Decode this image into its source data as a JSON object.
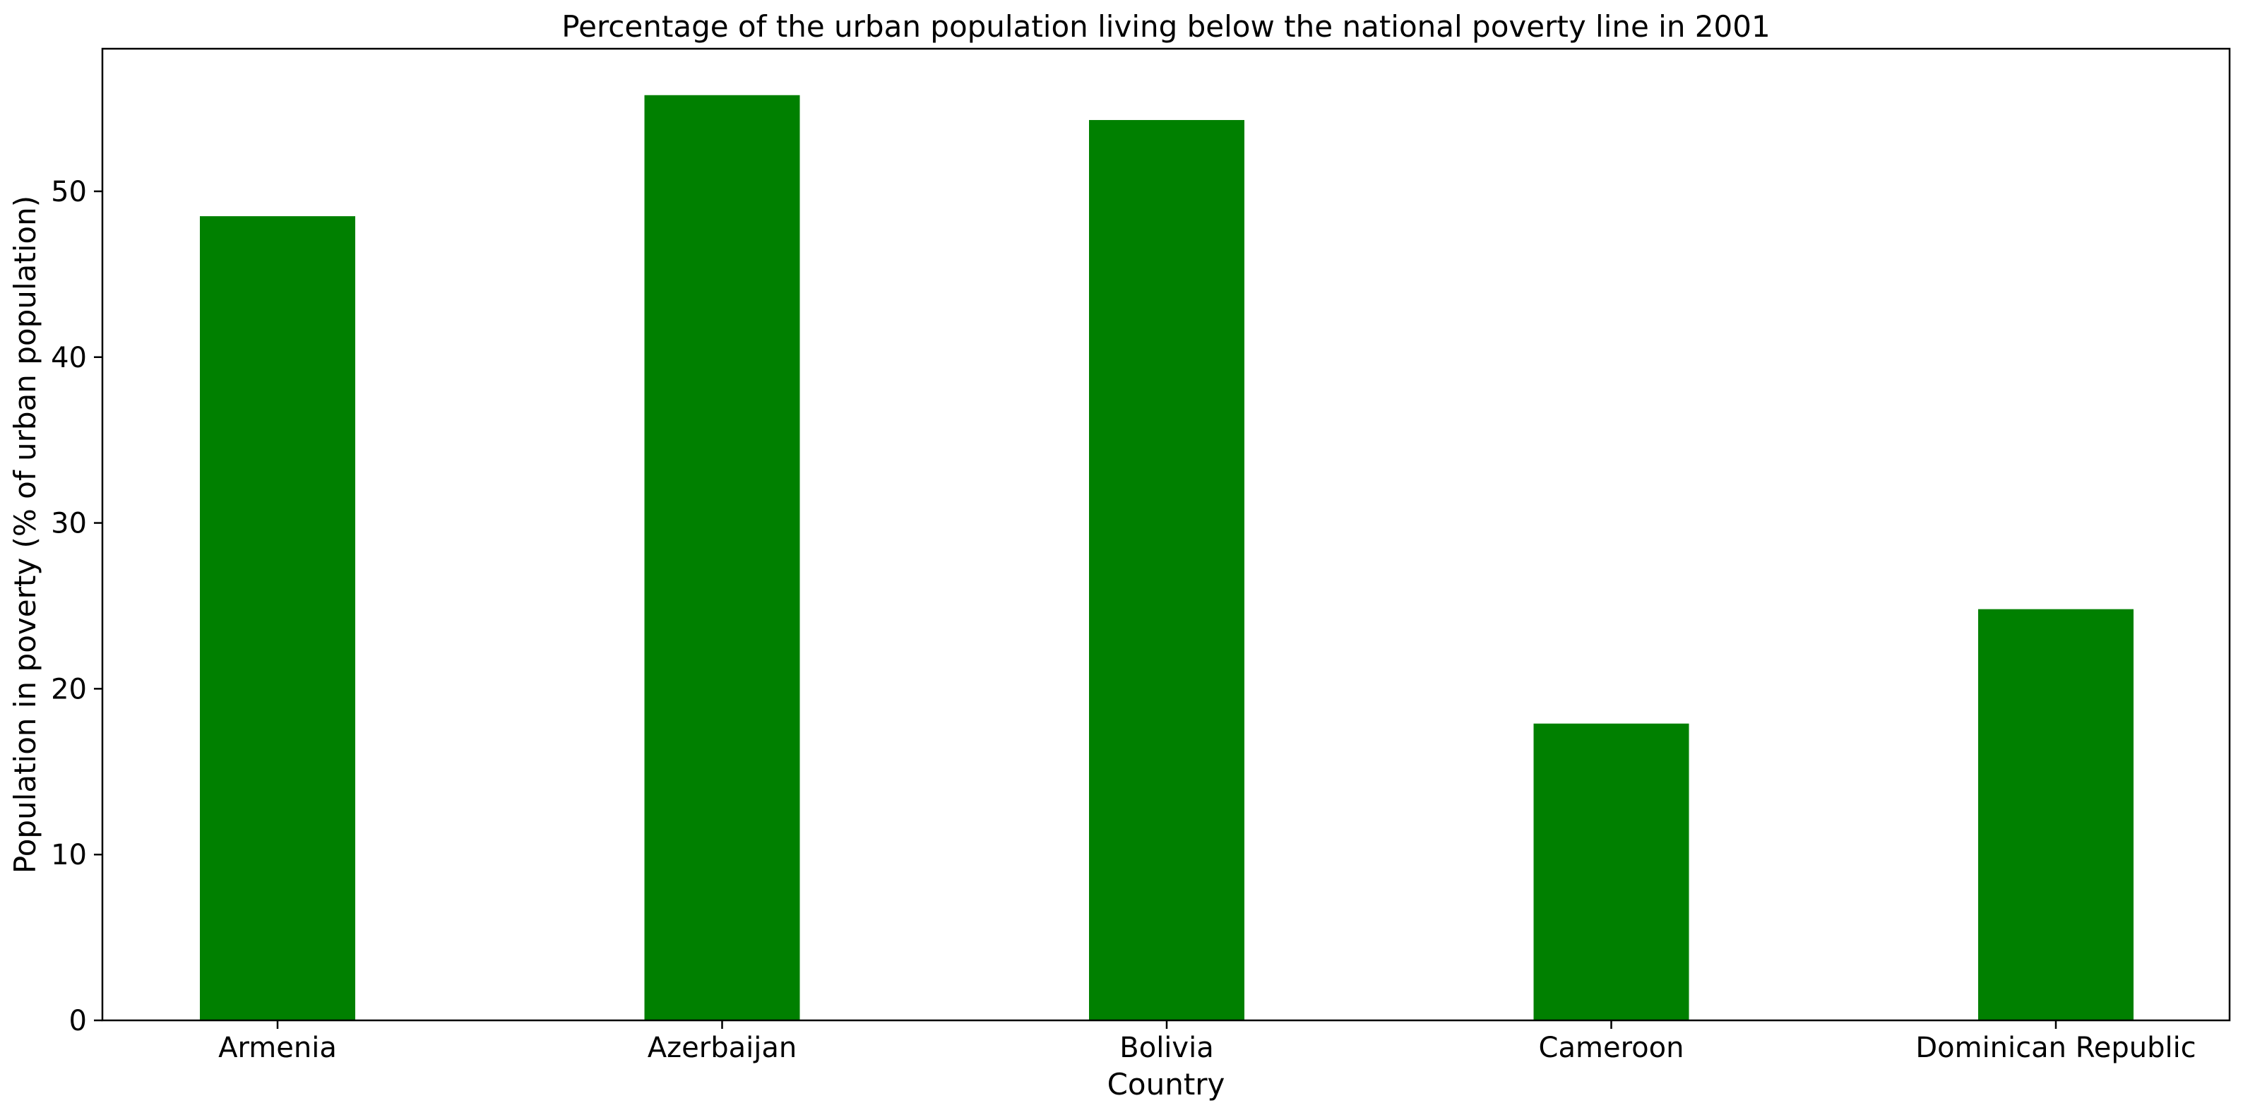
{
  "chart_data": {
    "type": "bar",
    "title": "Percentage of the urban population living below the national poverty line in 2001",
    "xlabel": "Country",
    "ylabel": "Population in poverty (% of urban population)",
    "categories": [
      "Armenia",
      "Azerbaijan",
      "Bolivia",
      "Cameroon",
      "Dominican Republic"
    ],
    "values": [
      48.5,
      55.8,
      54.3,
      17.9,
      24.8
    ],
    "ylim": [
      0,
      58.6
    ],
    "yticks": [
      0,
      10,
      20,
      30,
      40,
      50
    ],
    "grid": false,
    "legend": "none",
    "colors": {
      "bar": "#008000",
      "axis": "#000000"
    }
  }
}
